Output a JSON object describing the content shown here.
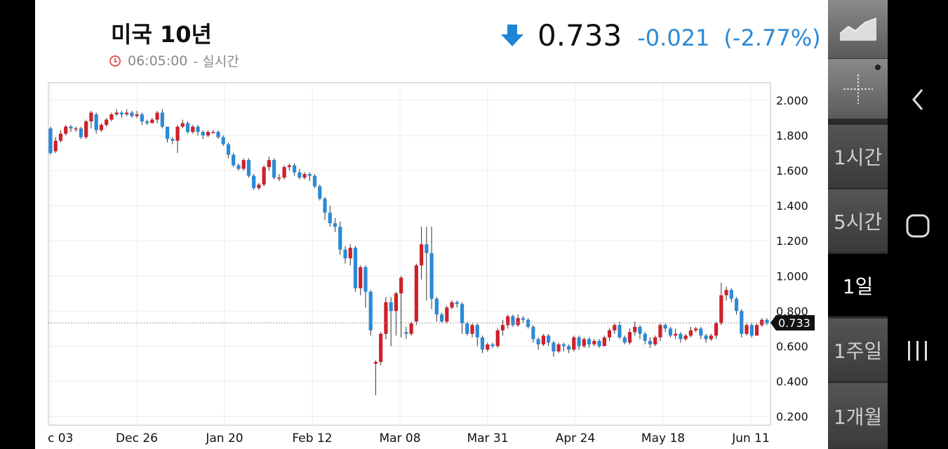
{
  "header": {
    "title": "미국 10년",
    "time": "06:05:00",
    "time_mode": "- 실시간",
    "price": "0.733",
    "change": "-0.021",
    "change_pct": "(-2.77%)",
    "down_color": "#1f86d6"
  },
  "periods": [
    "1시간",
    "5시간",
    "1일",
    "1주일",
    "1개월"
  ],
  "active_period": "1일",
  "colors": {
    "up": "#d0202a",
    "down": "#2a8ad8",
    "grid": "#ececec"
  },
  "chart_data": {
    "type": "candlestick",
    "ylim": [
      0.15,
      2.1
    ],
    "y_ticks": [
      "2.000",
      "1.800",
      "1.600",
      "1.400",
      "1.200",
      "1.000",
      "0.800",
      "0.600",
      "0.400",
      "0.200"
    ],
    "y_tick_values": [
      2.0,
      1.8,
      1.6,
      1.4,
      1.2,
      1.0,
      0.8,
      0.6,
      0.4,
      0.2
    ],
    "x_labels": [
      "c 03",
      "Dec 26",
      "Jan 20",
      "Feb 12",
      "Mar 08",
      "Mar 31",
      "Apr 24",
      "May 18",
      "Jun 11"
    ],
    "current_value": 0.733,
    "current_label": "0.733",
    "candles": [
      [
        1.84,
        1.7,
        1.69,
        1.85
      ],
      [
        1.71,
        1.77,
        1.7,
        1.79
      ],
      [
        1.77,
        1.81,
        1.76,
        1.83
      ],
      [
        1.81,
        1.85,
        1.8,
        1.86
      ],
      [
        1.85,
        1.84,
        1.82,
        1.86
      ],
      [
        1.84,
        1.84,
        1.82,
        1.85
      ],
      [
        1.84,
        1.79,
        1.78,
        1.85
      ],
      [
        1.79,
        1.88,
        1.78,
        1.89
      ],
      [
        1.88,
        1.93,
        1.84,
        1.94
      ],
      [
        1.92,
        1.83,
        1.81,
        1.93
      ],
      [
        1.83,
        1.86,
        1.82,
        1.87
      ],
      [
        1.86,
        1.89,
        1.85,
        1.9
      ],
      [
        1.89,
        1.92,
        1.88,
        1.93
      ],
      [
        1.92,
        1.93,
        1.91,
        1.95
      ],
      [
        1.93,
        1.92,
        1.9,
        1.94
      ],
      [
        1.92,
        1.93,
        1.91,
        1.95
      ],
      [
        1.93,
        1.91,
        1.9,
        1.94
      ],
      [
        1.91,
        1.92,
        1.9,
        1.94
      ],
      [
        1.92,
        1.88,
        1.86,
        1.93
      ],
      [
        1.88,
        1.87,
        1.86,
        1.89
      ],
      [
        1.87,
        1.89,
        1.87,
        1.9
      ],
      [
        1.89,
        1.93,
        1.87,
        1.94
      ],
      [
        1.93,
        1.85,
        1.84,
        1.95
      ],
      [
        1.85,
        1.78,
        1.76,
        1.85
      ],
      [
        1.78,
        1.77,
        1.75,
        1.79
      ],
      [
        1.77,
        1.85,
        1.7,
        1.86
      ],
      [
        1.85,
        1.87,
        1.84,
        1.89
      ],
      [
        1.87,
        1.82,
        1.81,
        1.88
      ],
      [
        1.82,
        1.85,
        1.81,
        1.86
      ],
      [
        1.85,
        1.82,
        1.8,
        1.86
      ],
      [
        1.82,
        1.8,
        1.78,
        1.83
      ],
      [
        1.8,
        1.82,
        1.79,
        1.83
      ],
      [
        1.82,
        1.82,
        1.81,
        1.83
      ],
      [
        1.82,
        1.79,
        1.78,
        1.83
      ],
      [
        1.79,
        1.75,
        1.74,
        1.8
      ],
      [
        1.75,
        1.69,
        1.67,
        1.76
      ],
      [
        1.69,
        1.63,
        1.62,
        1.7
      ],
      [
        1.63,
        1.61,
        1.6,
        1.64
      ],
      [
        1.61,
        1.66,
        1.6,
        1.67
      ],
      [
        1.66,
        1.57,
        1.56,
        1.67
      ],
      [
        1.57,
        1.5,
        1.49,
        1.58
      ],
      [
        1.5,
        1.52,
        1.49,
        1.53
      ],
      [
        1.52,
        1.62,
        1.51,
        1.63
      ],
      [
        1.62,
        1.66,
        1.6,
        1.68
      ],
      [
        1.66,
        1.56,
        1.55,
        1.67
      ],
      [
        1.56,
        1.56,
        1.54,
        1.58
      ],
      [
        1.56,
        1.62,
        1.55,
        1.63
      ],
      [
        1.62,
        1.63,
        1.6,
        1.64
      ],
      [
        1.63,
        1.59,
        1.57,
        1.64
      ],
      [
        1.59,
        1.56,
        1.55,
        1.61
      ],
      [
        1.56,
        1.58,
        1.55,
        1.59
      ],
      [
        1.58,
        1.57,
        1.54,
        1.59
      ],
      [
        1.57,
        1.51,
        1.5,
        1.58
      ],
      [
        1.51,
        1.44,
        1.43,
        1.52
      ],
      [
        1.44,
        1.36,
        1.32,
        1.45
      ],
      [
        1.36,
        1.3,
        1.28,
        1.4
      ],
      [
        1.3,
        1.28,
        1.25,
        1.33
      ],
      [
        1.28,
        1.15,
        1.12,
        1.31
      ],
      [
        1.15,
        1.1,
        1.07,
        1.17
      ],
      [
        1.1,
        1.16,
        1.06,
        1.18
      ],
      [
        1.16,
        0.93,
        0.91,
        1.17
      ],
      [
        0.93,
        1.05,
        0.89,
        1.06
      ],
      [
        1.05,
        0.91,
        0.82,
        1.06
      ],
      [
        0.91,
        0.69,
        0.66,
        0.92
      ],
      [
        0.5,
        0.51,
        0.32,
        0.52
      ],
      [
        0.51,
        0.67,
        0.49,
        0.68
      ],
      [
        0.67,
        0.85,
        0.64,
        0.88
      ],
      [
        0.85,
        0.8,
        0.6,
        0.88
      ],
      [
        0.8,
        0.9,
        0.66,
        0.91
      ],
      [
        0.9,
        0.99,
        0.65,
        1.0
      ],
      [
        0.68,
        0.67,
        0.64,
        0.71
      ],
      [
        0.67,
        0.73,
        0.66,
        0.74
      ],
      [
        0.74,
        1.06,
        0.72,
        1.07
      ],
      [
        1.06,
        1.18,
        0.98,
        1.28
      ],
      [
        1.18,
        1.13,
        0.86,
        1.28
      ],
      [
        1.13,
        0.87,
        0.81,
        1.28
      ],
      [
        0.87,
        0.78,
        0.74,
        0.88
      ],
      [
        0.78,
        0.74,
        0.73,
        0.79
      ],
      [
        0.74,
        0.82,
        0.73,
        0.83
      ],
      [
        0.82,
        0.85,
        0.81,
        0.86
      ],
      [
        0.85,
        0.84,
        0.82,
        0.86
      ],
      [
        0.84,
        0.73,
        0.67,
        0.85
      ],
      [
        0.73,
        0.67,
        0.66,
        0.74
      ],
      [
        0.67,
        0.72,
        0.65,
        0.73
      ],
      [
        0.72,
        0.65,
        0.6,
        0.73
      ],
      [
        0.65,
        0.58,
        0.56,
        0.66
      ],
      [
        0.58,
        0.61,
        0.57,
        0.62
      ],
      [
        0.61,
        0.6,
        0.59,
        0.62
      ],
      [
        0.6,
        0.69,
        0.59,
        0.7
      ],
      [
        0.69,
        0.72,
        0.66,
        0.75
      ],
      [
        0.72,
        0.77,
        0.7,
        0.78
      ],
      [
        0.77,
        0.72,
        0.71,
        0.78
      ],
      [
        0.72,
        0.76,
        0.71,
        0.78
      ],
      [
        0.76,
        0.75,
        0.73,
        0.77
      ],
      [
        0.75,
        0.71,
        0.7,
        0.76
      ],
      [
        0.71,
        0.64,
        0.62,
        0.72
      ],
      [
        0.64,
        0.61,
        0.58,
        0.65
      ],
      [
        0.61,
        0.66,
        0.6,
        0.67
      ],
      [
        0.66,
        0.62,
        0.6,
        0.67
      ],
      [
        0.62,
        0.57,
        0.54,
        0.63
      ],
      [
        0.57,
        0.61,
        0.56,
        0.62
      ],
      [
        0.61,
        0.6,
        0.57,
        0.62
      ],
      [
        0.6,
        0.58,
        0.56,
        0.61
      ],
      [
        0.58,
        0.65,
        0.57,
        0.66
      ],
      [
        0.65,
        0.6,
        0.58,
        0.66
      ],
      [
        0.6,
        0.64,
        0.59,
        0.65
      ],
      [
        0.64,
        0.61,
        0.59,
        0.65
      ],
      [
        0.61,
        0.63,
        0.6,
        0.64
      ],
      [
        0.63,
        0.6,
        0.59,
        0.64
      ],
      [
        0.6,
        0.65,
        0.6,
        0.66
      ],
      [
        0.65,
        0.69,
        0.63,
        0.7
      ],
      [
        0.69,
        0.72,
        0.67,
        0.73
      ],
      [
        0.72,
        0.65,
        0.64,
        0.74
      ],
      [
        0.65,
        0.62,
        0.61,
        0.66
      ],
      [
        0.62,
        0.68,
        0.61,
        0.7
      ],
      [
        0.68,
        0.71,
        0.66,
        0.74
      ],
      [
        0.71,
        0.67,
        0.64,
        0.72
      ],
      [
        0.67,
        0.63,
        0.61,
        0.68
      ],
      [
        0.63,
        0.61,
        0.59,
        0.65
      ],
      [
        0.61,
        0.65,
        0.6,
        0.66
      ],
      [
        0.65,
        0.72,
        0.63,
        0.73
      ],
      [
        0.72,
        0.7,
        0.68,
        0.73
      ],
      [
        0.7,
        0.66,
        0.65,
        0.71
      ],
      [
        0.66,
        0.67,
        0.64,
        0.7
      ],
      [
        0.67,
        0.64,
        0.62,
        0.68
      ],
      [
        0.64,
        0.66,
        0.63,
        0.67
      ],
      [
        0.66,
        0.69,
        0.65,
        0.71
      ],
      [
        0.69,
        0.7,
        0.68,
        0.71
      ],
      [
        0.7,
        0.66,
        0.64,
        0.71
      ],
      [
        0.66,
        0.64,
        0.62,
        0.67
      ],
      [
        0.64,
        0.66,
        0.63,
        0.67
      ],
      [
        0.66,
        0.73,
        0.64,
        0.74
      ],
      [
        0.73,
        0.89,
        0.72,
        0.96
      ],
      [
        0.89,
        0.92,
        0.86,
        0.94
      ],
      [
        0.92,
        0.87,
        0.85,
        0.93
      ],
      [
        0.87,
        0.8,
        0.78,
        0.88
      ],
      [
        0.8,
        0.67,
        0.65,
        0.81
      ],
      [
        0.67,
        0.72,
        0.66,
        0.73
      ],
      [
        0.72,
        0.66,
        0.65,
        0.73
      ],
      [
        0.66,
        0.72,
        0.66,
        0.73
      ],
      [
        0.72,
        0.75,
        0.71,
        0.76
      ],
      [
        0.75,
        0.73,
        0.72,
        0.76
      ]
    ]
  }
}
